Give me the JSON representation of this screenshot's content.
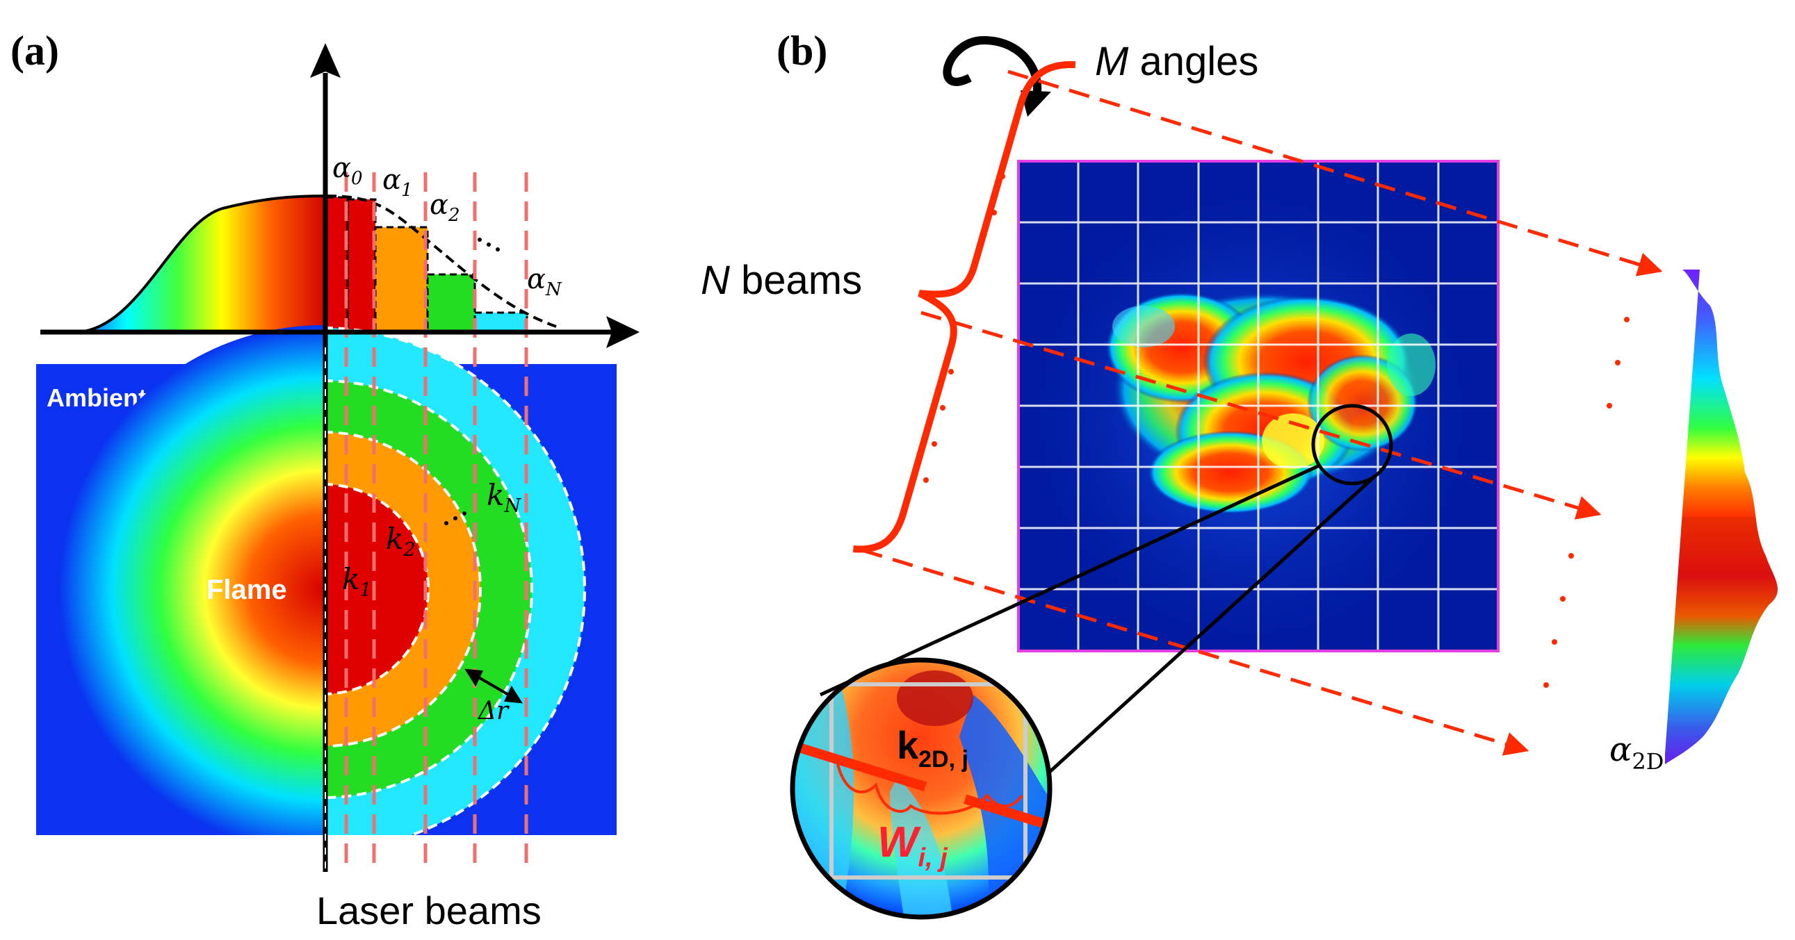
{
  "panel_a": {
    "label": "(a)",
    "ambient_label": "Ambient",
    "flame_label": "Flame",
    "alpha_labels": [
      {
        "sym": "α",
        "sub": "0"
      },
      {
        "sym": "α",
        "sub": "1"
      },
      {
        "sym": "α",
        "sub": "2"
      },
      {
        "sym": "α",
        "sub": "N"
      }
    ],
    "k_labels": [
      {
        "sym": "k",
        "sub": "1"
      },
      {
        "sym": "k",
        "sub": "2"
      },
      {
        "sym": "k",
        "sub": "N"
      }
    ],
    "dr_label": "Δr",
    "laser_beams_label": "Laser beams"
  },
  "panel_b": {
    "label": "(b)",
    "m_angles": {
      "italic": "M",
      "rest": " angles"
    },
    "n_beams": {
      "italic": "N",
      "rest": " beams"
    },
    "k2d_label": {
      "sym": "k",
      "sub": "2D, j"
    },
    "w_label": {
      "sym": "W",
      "sub": "i, j"
    },
    "alpha2d_label": {
      "sym": "α",
      "sub": "2D"
    }
  },
  "colors": {
    "ambient_blue": "#0a32f0",
    "beam_red": "#f07070",
    "bracket_red": "#ff2a00",
    "frame_magenta": "#e23ee2"
  }
}
